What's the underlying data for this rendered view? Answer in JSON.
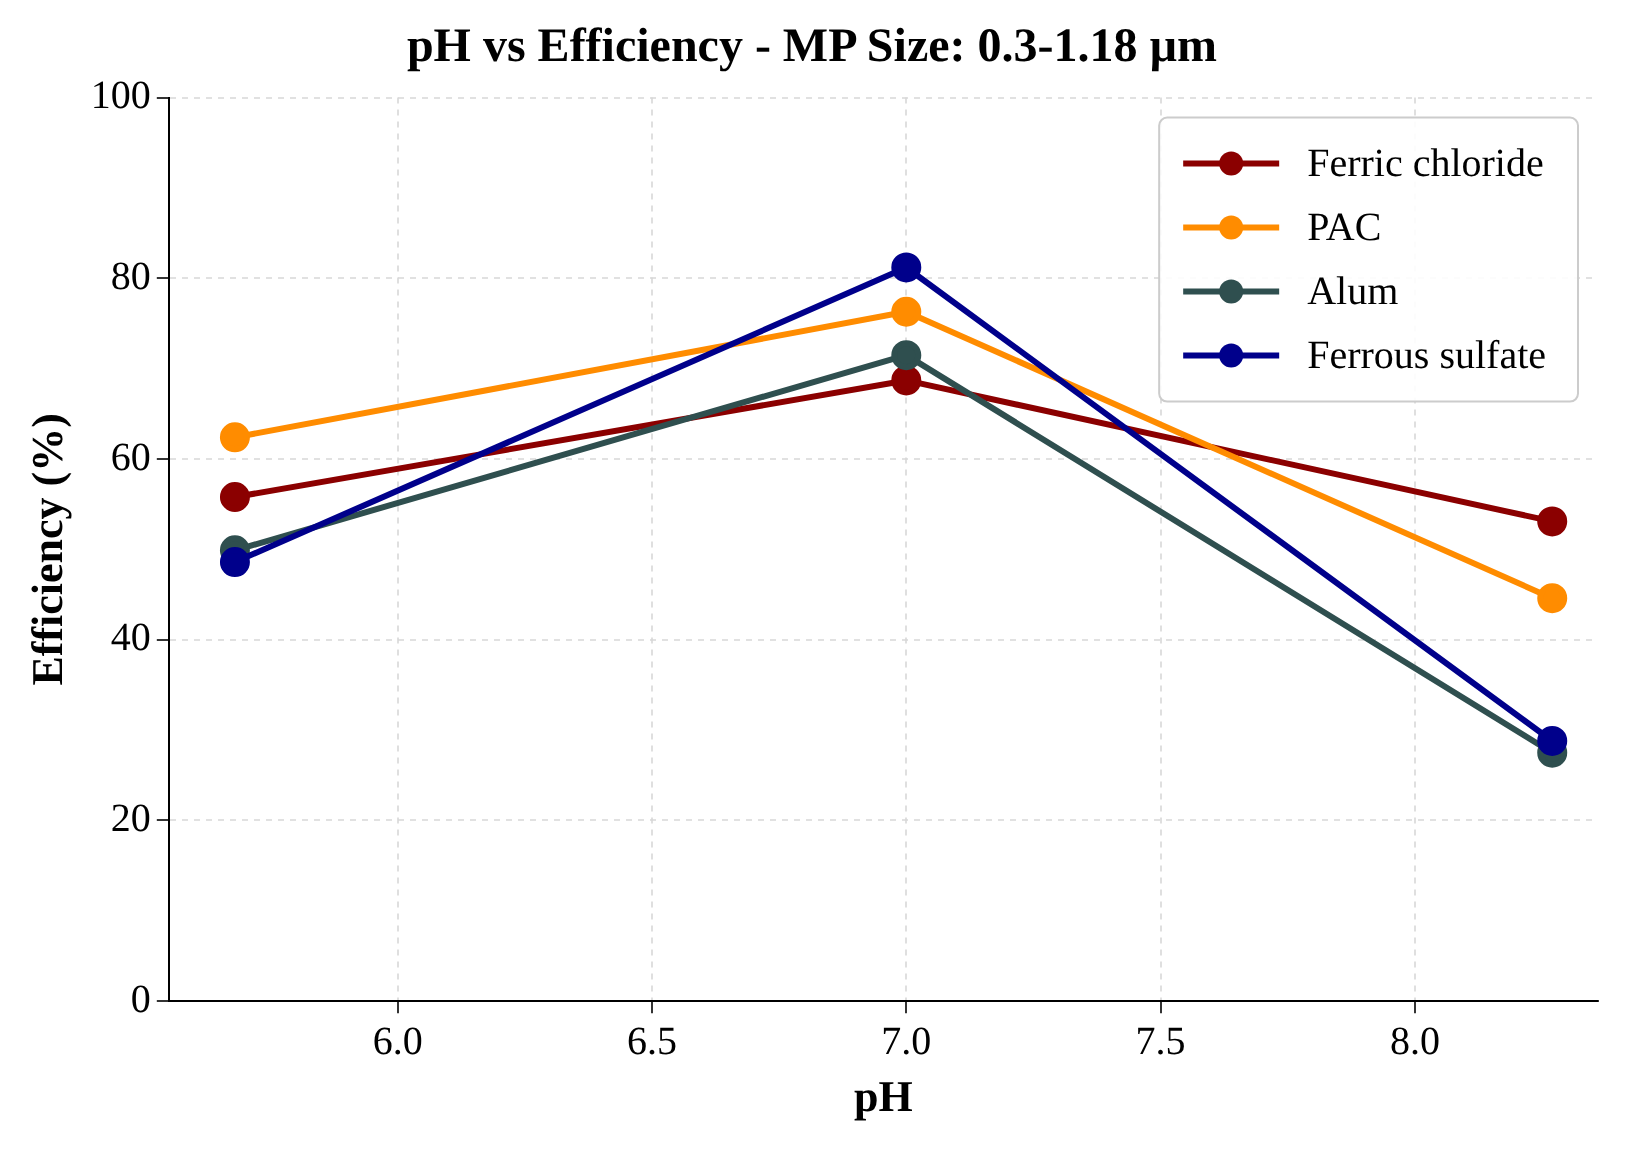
{
  "chart_data": {
    "type": "line",
    "title": "pH vs Efficiency - MP Size: 0.3-1.18 µm",
    "xlabel": "pH",
    "ylabel": "Efficiency (%)",
    "x": [
      5.68,
      7.0,
      8.27
    ],
    "series": [
      {
        "name": "Ferric chloride",
        "color": "#8b0000",
        "values": [
          55.8,
          68.7,
          53.1
        ]
      },
      {
        "name": "PAC",
        "color": "#ff8c00",
        "values": [
          62.4,
          76.3,
          44.6
        ]
      },
      {
        "name": "Alum",
        "color": "#2f4f4f",
        "values": [
          49.9,
          71.5,
          27.5
        ]
      },
      {
        "name": "Ferrous sulfate",
        "color": "#00008b",
        "values": [
          48.6,
          81.2,
          28.8
        ]
      }
    ],
    "xlim": [
      5.55,
      8.36
    ],
    "xticks": [
      {
        "value": 6.0,
        "label": "6.0"
      },
      {
        "value": 6.5,
        "label": "6.5"
      },
      {
        "value": 7.0,
        "label": "7.0"
      },
      {
        "value": 7.5,
        "label": "7.5"
      },
      {
        "value": 8.0,
        "label": "8.0"
      }
    ],
    "ylim": [
      0,
      100
    ],
    "yticks": [
      0,
      20,
      40,
      60,
      80,
      100
    ],
    "grid": true,
    "legend": "top right",
    "marker": "circle",
    "line_style": "solid"
  }
}
